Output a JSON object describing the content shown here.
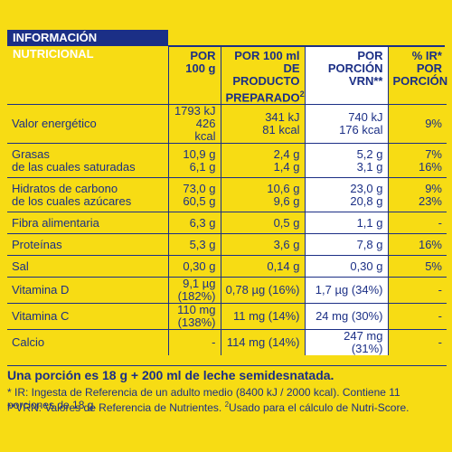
{
  "title": "INFORMACIÓN NUTRICIONAL",
  "headers": {
    "per100g_line1": "POR",
    "per100g_line2": "100 g",
    "per100ml_line1": "POR 100 ml",
    "per100ml_line2": "DE PRODUCTO",
    "per100ml_line3": "PREPARADO",
    "per100ml_sup": "2",
    "portion_line1": "POR",
    "portion_line2": "PORCIÓN",
    "portion_line3": "VRN**",
    "ir_line1": "% IR*",
    "ir_line2": "POR",
    "ir_line3": "PORCIÓN"
  },
  "rows": [
    {
      "label1": "Valor energético",
      "label2": "",
      "a1": "1793 kJ",
      "a2": "426 kcal",
      "b1": "341 kJ",
      "b2": "81 kcal",
      "c1": "740 kJ",
      "c2": "176 kcal",
      "d1": "9%",
      "d2": ""
    },
    {
      "label1": "Grasas",
      "label2": "de las cuales saturadas",
      "a1": "10,9 g",
      "a2": "6,1 g",
      "b1": "2,4 g",
      "b2": "1,4 g",
      "c1": "5,2 g",
      "c2": "3,1 g",
      "d1": "7%",
      "d2": "16%"
    },
    {
      "label1": "Hidratos de carbono",
      "label2": "de los cuales azúcares",
      "a1": "73,0 g",
      "a2": "60,5 g",
      "b1": "10,6 g",
      "b2": "9,6 g",
      "c1": "23,0 g",
      "c2": "20,8 g",
      "d1": "9%",
      "d2": "23%"
    },
    {
      "label1": "Fibra alimentaria",
      "label2": "",
      "a1": "6,3 g",
      "a2": "",
      "b1": "0,5 g",
      "b2": "",
      "c1": "1,1 g",
      "c2": "",
      "d1": "-",
      "d2": ""
    },
    {
      "label1": "Proteínas",
      "label2": "",
      "a1": "5,3 g",
      "a2": "",
      "b1": "3,6 g",
      "b2": "",
      "c1": "7,8 g",
      "c2": "",
      "d1": "16%",
      "d2": ""
    },
    {
      "label1": "Sal",
      "label2": "",
      "a1": "0,30 g",
      "a2": "",
      "b1": "0,14 g",
      "b2": "",
      "c1": "0,30 g",
      "c2": "",
      "d1": "5%",
      "d2": ""
    },
    {
      "label1": "Vitamina D",
      "label2": "",
      "a1": "9,1 µg (182%)",
      "a2": "",
      "b1": "0,78 µg (16%)",
      "b2": "",
      "c1": "1,7 µg (34%)",
      "c2": "",
      "d1": "-",
      "d2": ""
    },
    {
      "label1": "Vitamina C",
      "label2": "",
      "a1": "110 mg (138%)",
      "a2": "",
      "b1": "11 mg (14%)",
      "b2": "",
      "c1": "24 mg (30%)",
      "c2": "",
      "d1": "-",
      "d2": ""
    },
    {
      "label1": "Calcio",
      "label2": "",
      "a1": "-",
      "a2": "",
      "b1": "114 mg (14%)",
      "b2": "",
      "c1": "247 mg (31%)",
      "c2": "",
      "d1": "-",
      "d2": ""
    }
  ],
  "footer": {
    "portion": "Una porción es 18 g + 200 ml de leche semidesnatada.",
    "ir_note": "* IR: Ingesta de Referencia de un adulto medio (8400 kJ / 2000 kcal). Contiene 11 porciones de 18 g.",
    "vrn_note": "**VRN: Valores de Referencia de Nutrientes.",
    "nutriscore_sup": "2",
    "nutriscore_note": "Usado para el cálculo de Nutri-Score."
  },
  "colors": {
    "background": "#f7dc14",
    "text": "#1b2f86",
    "highlight": "#ffffff"
  }
}
